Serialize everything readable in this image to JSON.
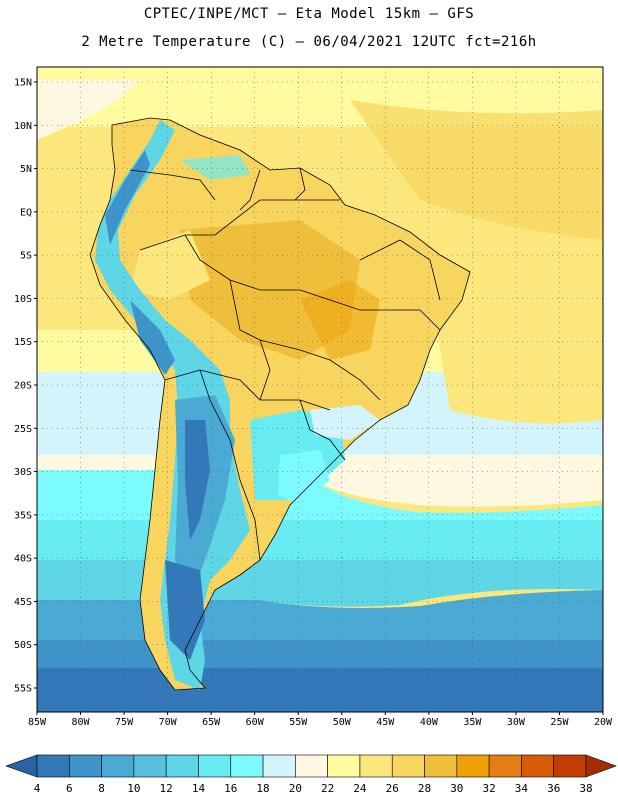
{
  "header": {
    "line1": "CPTEC/INPE/MCT –  Eta Model 15km – GFS",
    "line2": "2 Metre Temperature (C) – 06/04/2021 12UTC fct=216h"
  },
  "map": {
    "lat_labels": [
      "15N",
      "10N",
      "5N",
      "EQ",
      "5S",
      "10S",
      "15S",
      "20S",
      "25S",
      "30S",
      "35S",
      "40S",
      "45S",
      "50S",
      "55S"
    ],
    "lon_labels": [
      "85W",
      "80W",
      "75W",
      "70W",
      "65W",
      "60W",
      "55W",
      "50W",
      "45W",
      "40W",
      "35W",
      "30W",
      "25W",
      "20W"
    ],
    "lat_range": [
      15,
      -55
    ],
    "lon_range": [
      -85,
      -20
    ]
  },
  "colorbar": {
    "labels": [
      "4",
      "6",
      "8",
      "10",
      "12",
      "14",
      "16",
      "18",
      "20",
      "22",
      "24",
      "26",
      "28",
      "30",
      "32",
      "34",
      "36",
      "38"
    ],
    "colors": [
      "#2b62a3",
      "#3378b8",
      "#3e93c8",
      "#4aaad4",
      "#58c0dc",
      "#5ed6e6",
      "#66ecf2",
      "#7cfbff",
      "#d3f4fa",
      "#fff8e0",
      "#fffb9e",
      "#fbe77c",
      "#f7d55e",
      "#efbf3c",
      "#eea106",
      "#e37d14",
      "#d85b07",
      "#c23d04",
      "#a82c02"
    ]
  }
}
